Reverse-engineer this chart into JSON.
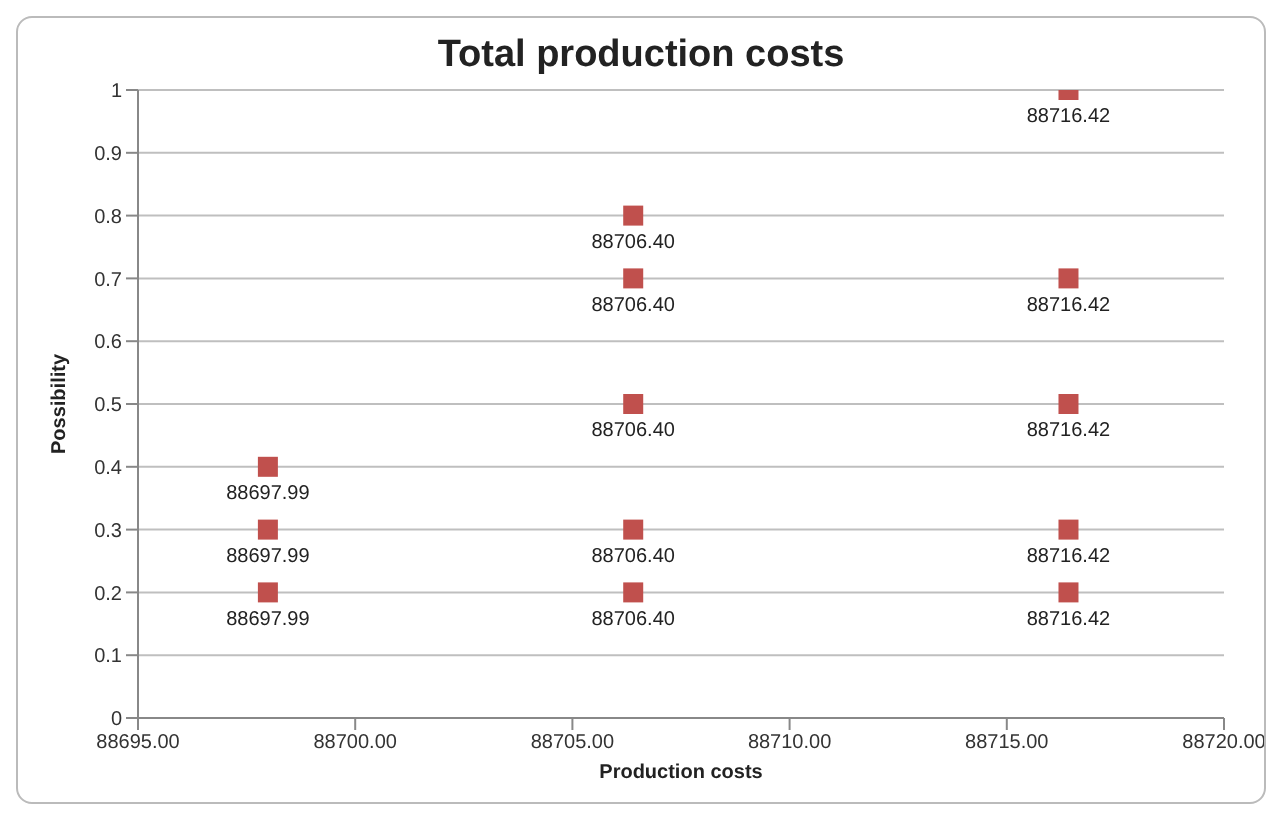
{
  "chart_data": {
    "type": "scatter",
    "title": "Total production costs",
    "xlabel": "Production costs",
    "ylabel": "Possibility",
    "xlim": [
      88695,
      88720
    ],
    "xticks": [
      {
        "value": 88695,
        "label": "88695.00"
      },
      {
        "value": 88700,
        "label": "88700.00"
      },
      {
        "value": 88705,
        "label": "88705.00"
      },
      {
        "value": 88710,
        "label": "88710.00"
      },
      {
        "value": 88715,
        "label": "88715.00"
      },
      {
        "value": 88720,
        "label": "88720.00"
      }
    ],
    "ylim": [
      0,
      1
    ],
    "yticks": [
      0,
      0.1,
      0.2,
      0.3,
      0.4,
      0.5,
      0.6,
      0.7,
      0.8,
      0.9,
      1
    ],
    "grid": "y",
    "marker": "square",
    "legend": false,
    "series": [
      {
        "color": "#c0504d",
        "x": [
          88697.99,
          88697.99,
          88697.99,
          88706.4,
          88706.4,
          88706.4,
          88706.4,
          88706.4,
          88716.42,
          88716.42,
          88716.42,
          88716.42,
          88716.42
        ],
        "values": [
          0.4,
          0.3,
          0.2,
          0.8,
          0.7,
          0.5,
          0.3,
          0.2,
          1,
          0.7,
          0.5,
          0.3,
          0.2
        ]
      }
    ],
    "annotations": [
      {
        "text": "88697.99",
        "x": 88697.99,
        "y": 0.4
      },
      {
        "text": "88697.99",
        "x": 88697.99,
        "y": 0.3
      },
      {
        "text": "88697.99",
        "x": 88697.99,
        "y": 0.2
      },
      {
        "text": "88706.40",
        "x": 88706.4,
        "y": 0.8
      },
      {
        "text": "88706.40",
        "x": 88706.4,
        "y": 0.7
      },
      {
        "text": "88706.40",
        "x": 88706.4,
        "y": 0.5
      },
      {
        "text": "88706.40",
        "x": 88706.4,
        "y": 0.3
      },
      {
        "text": "88706.40",
        "x": 88706.4,
        "y": 0.2
      },
      {
        "text": "88716.42",
        "x": 88716.42,
        "y": 1
      },
      {
        "text": "88716.42",
        "x": 88716.42,
        "y": 0.7
      },
      {
        "text": "88716.42",
        "x": 88716.42,
        "y": 0.5
      },
      {
        "text": "88716.42",
        "x": 88716.42,
        "y": 0.3
      },
      {
        "text": "88716.42",
        "x": 88716.42,
        "y": 0.2
      }
    ]
  }
}
